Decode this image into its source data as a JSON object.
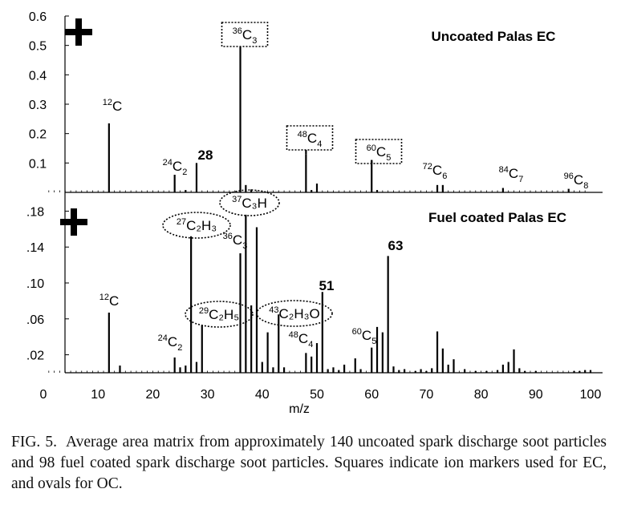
{
  "chart_data": [
    {
      "type": "bar",
      "series": [
        {
          "name": "",
          "values": [
            [
              12,
              0.235
            ],
            [
              24,
              0.06
            ],
            [
              26,
              0.008
            ],
            [
              28,
              0.1
            ],
            [
              36,
              0.48
            ],
            [
              37,
              0.025
            ],
            [
              38,
              0.01
            ],
            [
              48,
              0.13
            ],
            [
              49,
              0.008
            ],
            [
              50,
              0.03
            ],
            [
              60,
              0.11
            ],
            [
              61,
              0.008
            ],
            [
              72,
              0.025
            ],
            [
              73,
              0.025
            ],
            [
              84,
              0.015
            ],
            [
              96,
              0.012
            ]
          ]
        }
      ],
      "ylim": [
        0,
        0.6
      ],
      "yticks": [
        "0.1",
        "0.2",
        "0.3",
        "0.4",
        "0.5",
        "0.6"
      ],
      "ytick_values": [
        0.1,
        0.2,
        0.3,
        0.4,
        0.5,
        0.6
      ],
      "panel_label": "Uncoated Palas EC",
      "polarity": "+",
      "annotations": [
        {
          "text": "C",
          "iso": "12",
          "x": 12,
          "y": 0.235,
          "sub": "",
          "boxed": "none",
          "bold": false
        },
        {
          "text": "C",
          "iso": "24",
          "x": 24,
          "y": 0.06,
          "sub": "2",
          "boxed": "none",
          "bold": false
        },
        {
          "text": "28",
          "iso": "",
          "x": 28,
          "y": 0.1,
          "sub": "",
          "boxed": "none",
          "bold": true
        },
        {
          "text": "C",
          "iso": "36",
          "x": 36,
          "y": 0.48,
          "sub": "3",
          "boxed": "square",
          "bold": false
        },
        {
          "text": "C",
          "iso": "48",
          "x": 48,
          "y": 0.13,
          "sub": "4",
          "boxed": "square",
          "bold": false
        },
        {
          "text": "C",
          "iso": "60",
          "x": 60,
          "y": 0.11,
          "sub": "5",
          "boxed": "square",
          "bold": false
        },
        {
          "text": "C",
          "iso": "72",
          "x": 72,
          "y": 0.025,
          "sub": "6",
          "boxed": "none",
          "bold": false
        },
        {
          "text": "C",
          "iso": "84",
          "x": 84,
          "y": 0.015,
          "sub": "7",
          "boxed": "none",
          "bold": false
        },
        {
          "text": "C",
          "iso": "96",
          "x": 96,
          "y": 0.012,
          "sub": "8",
          "boxed": "none",
          "bold": false
        }
      ]
    },
    {
      "type": "bar",
      "series": [
        {
          "name": "",
          "values": [
            [
              12,
              0.067
            ],
            [
              14,
              0.008
            ],
            [
              24,
              0.017
            ],
            [
              25,
              0.006
            ],
            [
              26,
              0.008
            ],
            [
              27,
              0.152
            ],
            [
              28,
              0.012
            ],
            [
              29,
              0.053
            ],
            [
              36,
              0.133
            ],
            [
              37,
              0.176
            ],
            [
              38,
              0.075
            ],
            [
              39,
              0.162
            ],
            [
              40,
              0.012
            ],
            [
              41,
              0.045
            ],
            [
              42,
              0.006
            ],
            [
              43,
              0.065
            ],
            [
              44,
              0.006
            ],
            [
              48,
              0.022
            ],
            [
              49,
              0.018
            ],
            [
              50,
              0.033
            ],
            [
              51,
              0.09
            ],
            [
              52,
              0.004
            ],
            [
              53,
              0.006
            ],
            [
              54,
              0.003
            ],
            [
              55,
              0.009
            ],
            [
              57,
              0.016
            ],
            [
              58,
              0.004
            ],
            [
              60,
              0.028
            ],
            [
              61,
              0.051
            ],
            [
              62,
              0.045
            ],
            [
              63,
              0.13
            ],
            [
              64,
              0.007
            ],
            [
              65,
              0.003
            ],
            [
              66,
              0.004
            ],
            [
              68,
              0.002
            ],
            [
              69,
              0.004
            ],
            [
              70,
              0.002
            ],
            [
              71,
              0.005
            ],
            [
              72,
              0.046
            ],
            [
              73,
              0.027
            ],
            [
              74,
              0.009
            ],
            [
              75,
              0.015
            ],
            [
              77,
              0.004
            ],
            [
              79,
              0.002
            ],
            [
              81,
              0.002
            ],
            [
              83,
              0.003
            ],
            [
              84,
              0.009
            ],
            [
              85,
              0.012
            ],
            [
              86,
              0.026
            ],
            [
              87,
              0.005
            ],
            [
              88,
              0.002
            ],
            [
              90,
              0.002
            ],
            [
              97,
              0.002
            ],
            [
              98,
              0.002
            ],
            [
              99,
              0.003
            ],
            [
              100,
              0.003
            ]
          ]
        }
      ],
      "ylim": [
        0,
        0.2
      ],
      "yticks": [
        ".02",
        ".06",
        ".10",
        ".14",
        ".18"
      ],
      "ytick_values": [
        0.02,
        0.06,
        0.1,
        0.14,
        0.18
      ],
      "panel_label": "Fuel coated Palas EC",
      "polarity": "+",
      "annotations": [
        {
          "text": "C",
          "iso": "12",
          "x": 12,
          "y": 0.067,
          "sub": "",
          "boxed": "none",
          "bold": false
        },
        {
          "text": "C",
          "iso": "24",
          "x": 24,
          "y": 0.017,
          "sub": "2",
          "boxed": "none",
          "bold": false
        },
        {
          "text": "C₂H₃",
          "iso": "27",
          "x": 27,
          "y": 0.152,
          "sub": "",
          "boxed": "oval",
          "bold": false
        },
        {
          "text": "C₂H₅",
          "iso": "29",
          "x": 29,
          "y": 0.053,
          "sub": "",
          "boxed": "oval",
          "bold": false
        },
        {
          "text": "C",
          "iso": "36",
          "x": 36,
          "y": 0.133,
          "sub": "3",
          "boxed": "none",
          "bold": false
        },
        {
          "text": "C₃H",
          "iso": "37",
          "x": 37,
          "y": 0.176,
          "sub": "",
          "boxed": "oval",
          "bold": false
        },
        {
          "text": "C₂H₃O",
          "iso": "43",
          "x": 43,
          "y": 0.065,
          "sub": "",
          "boxed": "oval",
          "bold": false
        },
        {
          "text": "C",
          "iso": "48",
          "x": 48,
          "y": 0.022,
          "sub": "4",
          "boxed": "none",
          "bold": false
        },
        {
          "text": "51",
          "iso": "",
          "x": 51,
          "y": 0.09,
          "sub": "",
          "boxed": "none",
          "bold": true
        },
        {
          "text": "C",
          "iso": "60",
          "x": 60,
          "y": 0.028,
          "sub": "5",
          "boxed": "none",
          "bold": false
        },
        {
          "text": "63",
          "iso": "",
          "x": 63,
          "y": 0.13,
          "sub": "",
          "boxed": "none",
          "bold": true
        }
      ]
    }
  ],
  "x_axis": {
    "label": "m/z",
    "xlim": [
      0,
      100
    ],
    "ticks": [
      "0",
      "10",
      "20",
      "30",
      "40",
      "50",
      "60",
      "70",
      "80",
      "90",
      "100"
    ],
    "tick_values": [
      0,
      10,
      20,
      30,
      40,
      50,
      60,
      70,
      80,
      90,
      100
    ]
  },
  "caption": {
    "label": "FIG. 5.",
    "text": "Average area matrix from approximately 140 uncoated spark discharge soot particles and 98 fuel coated spark discharge soot particles. Squares indicate ion markers used for EC, and ovals for OC."
  }
}
